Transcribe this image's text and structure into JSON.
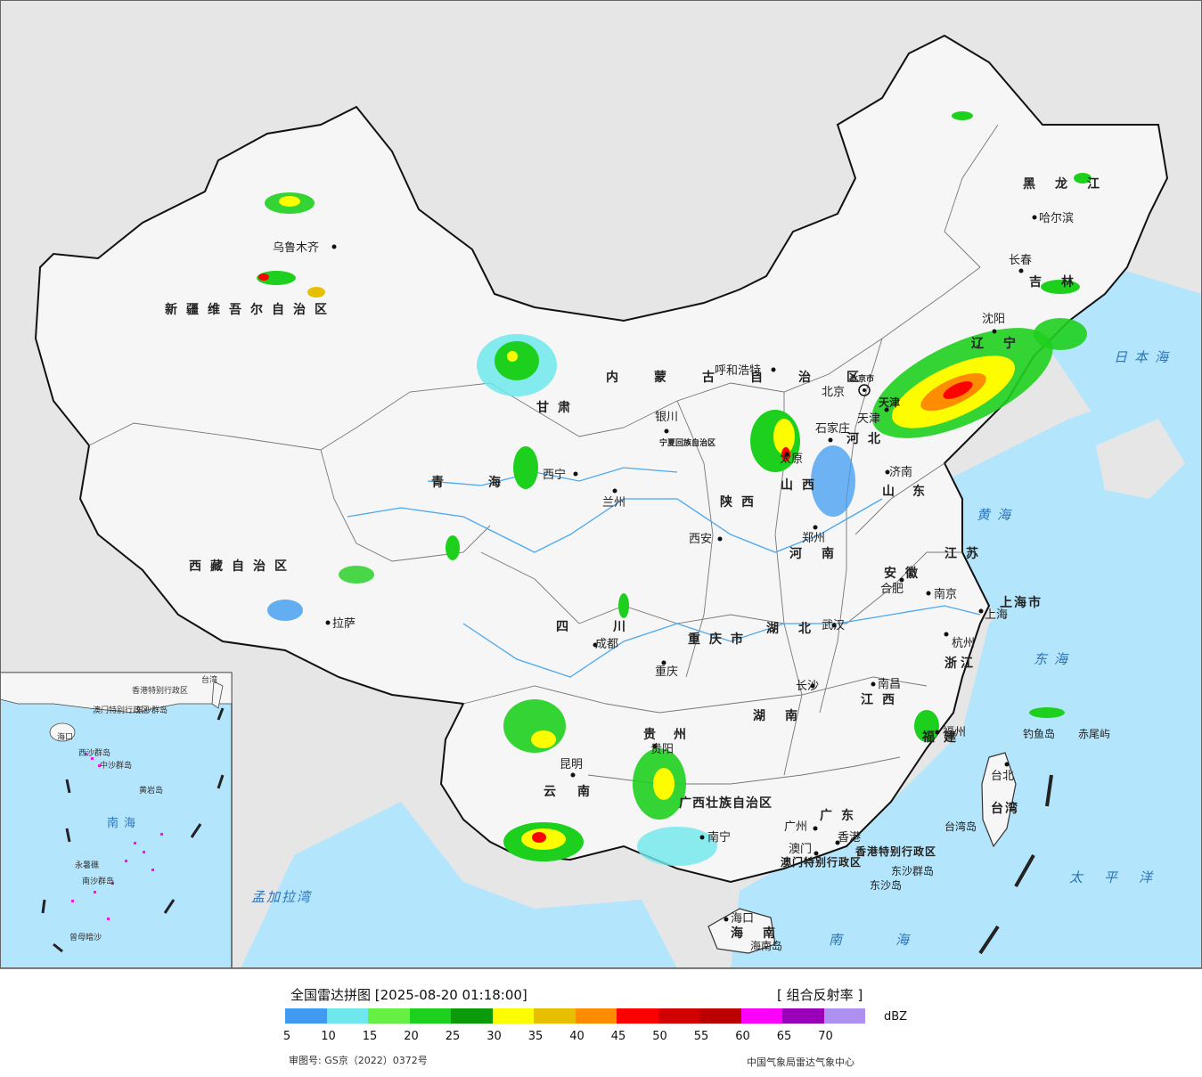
{
  "map": {
    "cities": [
      {
        "name": "乌鲁木齐"
      },
      {
        "name": "拉萨"
      },
      {
        "name": "西宁"
      },
      {
        "name": "兰州"
      },
      {
        "name": "银川"
      },
      {
        "name": "呼和浩特"
      },
      {
        "name": "北京"
      },
      {
        "name": "天津"
      },
      {
        "name": "石家庄"
      },
      {
        "name": "太原"
      },
      {
        "name": "济南"
      },
      {
        "name": "郑州"
      },
      {
        "name": "西安"
      },
      {
        "name": "成都"
      },
      {
        "name": "重庆"
      },
      {
        "name": "武汉"
      },
      {
        "name": "合肥"
      },
      {
        "name": "南京"
      },
      {
        "name": "上海"
      },
      {
        "name": "杭州"
      },
      {
        "name": "南昌"
      },
      {
        "name": "长沙"
      },
      {
        "name": "贵阳"
      },
      {
        "name": "昆明"
      },
      {
        "name": "南宁"
      },
      {
        "name": "广州"
      },
      {
        "name": "香港"
      },
      {
        "name": "澳门"
      },
      {
        "name": "福州"
      },
      {
        "name": "台北"
      },
      {
        "name": "海口"
      },
      {
        "name": "沈阳"
      },
      {
        "name": "长春"
      },
      {
        "name": "哈尔滨"
      }
    ],
    "regions": [
      "新疆维吾尔自治区",
      "西藏自治区",
      "青海",
      "甘肃",
      "内蒙古自治区",
      "黑龙江",
      "吉林",
      "辽宁",
      "河北",
      "山西",
      "山东",
      "河南",
      "陕西",
      "宁夏回族自治区",
      "四川",
      "重庆市",
      "湖北",
      "安徽",
      "江苏",
      "上海市",
      "浙江",
      "江西",
      "湖南",
      "贵州",
      "云南",
      "广西壮族自治区",
      "广东",
      "福建",
      "台湾",
      "海南",
      "香港特别行政区",
      "澳门特别行政区",
      "北京市",
      "天津"
    ],
    "seas": [
      "日本海",
      "黄海",
      "东海",
      "太平洋",
      "南海",
      "孟加拉湾"
    ],
    "islands": [
      "钓鱼岛",
      "赤尾屿",
      "台湾岛",
      "东沙群岛",
      "东沙岛",
      "海南岛"
    ],
    "inset": {
      "labels": [
        "海口",
        "东沙群岛",
        "西沙群岛",
        "中沙群岛",
        "黄岩岛",
        "南海",
        "南沙群岛",
        "永暑礁",
        "曾母暗沙",
        "香港特别行政区",
        "澳门特别行政区",
        "台湾"
      ]
    }
  },
  "legend": {
    "title": "全国雷达拼图 [2025-08-20 01:18:00]",
    "product": "[ 组合反射率 ]",
    "unit": "dBZ",
    "colors": [
      "#3f9bf0",
      "#6ee8ec",
      "#66f043",
      "#1ed01e",
      "#0a9a0a",
      "#fdfd00",
      "#e6c000",
      "#fd8c00",
      "#fd0000",
      "#d20000",
      "#bc0000",
      "#fc00fc",
      "#9b00b9",
      "#ad90f0"
    ],
    "ticks": [
      "5",
      "10",
      "15",
      "20",
      "25",
      "30",
      "35",
      "40",
      "45",
      "50",
      "55",
      "60",
      "65",
      "70"
    ],
    "approval": "审图号: GS京（2022）0372号",
    "source": "中国气象局雷达气象中心"
  }
}
